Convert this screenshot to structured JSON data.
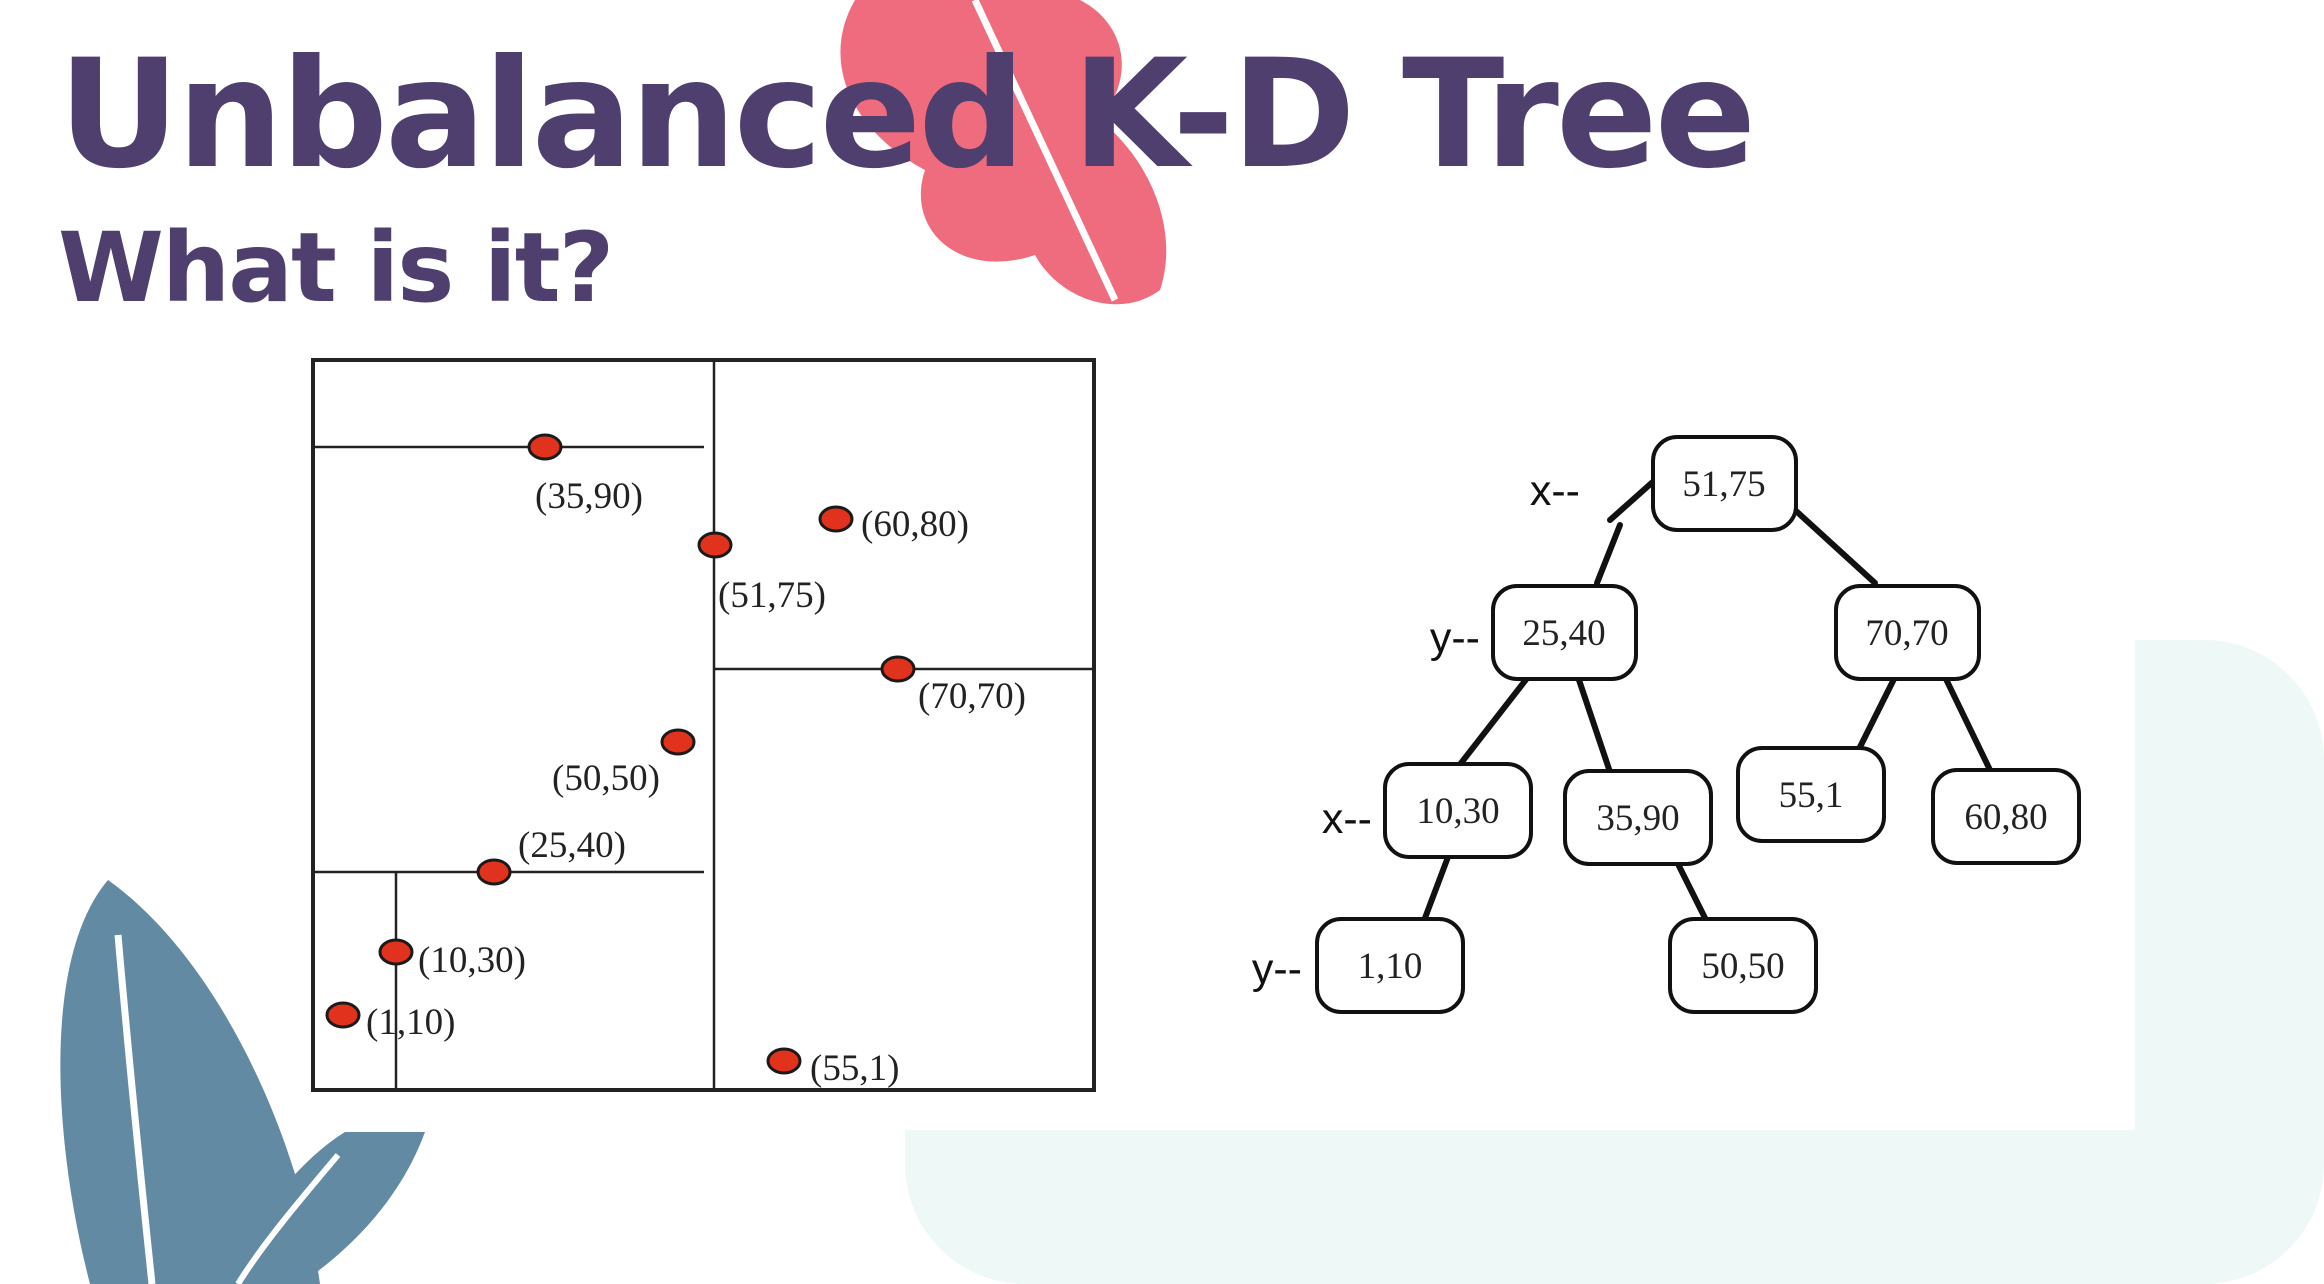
{
  "slide": {
    "title": "Unbalanced K-D Tree",
    "subtitle": "What is it?"
  },
  "colors": {
    "title": "#4f3f6f",
    "point": "#e0321c",
    "pink_leaf": "#ef6c7e",
    "blue_leaf": "#628aa3",
    "mint_bg": "#eef8f6"
  },
  "partition_plot": {
    "points": [
      {
        "label": "(35,90)"
      },
      {
        "label": "(60,80)"
      },
      {
        "label": "(51,75)"
      },
      {
        "label": "(70,70)"
      },
      {
        "label": "(50,50)"
      },
      {
        "label": "(25,40)"
      },
      {
        "label": "(10,30)"
      },
      {
        "label": "(1,10)"
      },
      {
        "label": "(55,1)"
      }
    ]
  },
  "tree": {
    "nodes": [
      {
        "id": "n1",
        "label": "51,75"
      },
      {
        "id": "n2",
        "label": "25,40"
      },
      {
        "id": "n3",
        "label": "70,70"
      },
      {
        "id": "n4",
        "label": "10,30"
      },
      {
        "id": "n5",
        "label": "35,90"
      },
      {
        "id": "n6",
        "label": "55,1"
      },
      {
        "id": "n7",
        "label": "60,80"
      },
      {
        "id": "n8",
        "label": "1,10"
      },
      {
        "id": "n9",
        "label": "50,50"
      }
    ],
    "edges": [
      [
        "n1",
        "n2"
      ],
      [
        "n1",
        "n3"
      ],
      [
        "n2",
        "n4"
      ],
      [
        "n2",
        "n5"
      ],
      [
        "n3",
        "n6"
      ],
      [
        "n3",
        "n7"
      ],
      [
        "n4",
        "n8"
      ],
      [
        "n5",
        "n9"
      ]
    ],
    "level_labels": [
      "x--",
      "y--",
      "x--",
      "y--"
    ]
  }
}
